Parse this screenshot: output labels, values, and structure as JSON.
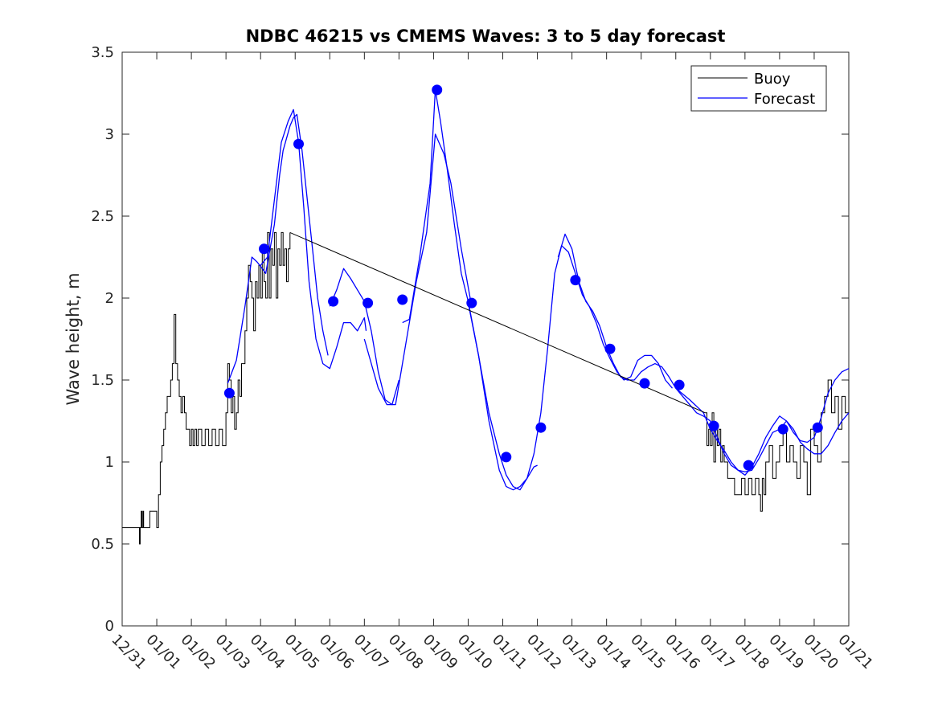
{
  "colors": {
    "buoy": "#000000",
    "forecast": "#0000ff",
    "marker": "#0000ff",
    "axis": "#262626"
  },
  "chart_data": {
    "type": "line",
    "title": "NDBC 46215 vs CMEMS Waves: 3 to 5 day forecast",
    "xlabel": "",
    "ylabel": "Wave height, m",
    "xlim": [
      0,
      21
    ],
    "ylim": [
      0,
      3.5
    ],
    "yticks": [
      0,
      0.5,
      1,
      1.5,
      2,
      2.5,
      3,
      3.5
    ],
    "ytick_labels": [
      "0",
      "0.5",
      "1",
      "1.5",
      "2",
      "2.5",
      "3",
      "3.5"
    ],
    "xticks": [
      0,
      1,
      2,
      3,
      4,
      5,
      6,
      7,
      8,
      9,
      10,
      11,
      12,
      13,
      14,
      15,
      16,
      17,
      18,
      19,
      20,
      21
    ],
    "xtick_labels": [
      "12/31",
      "01/01",
      "01/02",
      "01/03",
      "01/04",
      "01/05",
      "01/06",
      "01/07",
      "01/08",
      "01/09",
      "01/10",
      "01/11",
      "01/12",
      "01/13",
      "01/14",
      "01/15",
      "01/16",
      "01/17",
      "01/18",
      "01/19",
      "01/20",
      "01/21"
    ],
    "legend": {
      "position": "top-right",
      "entries": [
        {
          "label": "Buoy",
          "series": "buoy"
        },
        {
          "label": "Forecast",
          "series": "forecast"
        }
      ]
    },
    "series": [
      {
        "name": "Buoy",
        "role": "buoy",
        "x": [
          0,
          0.5,
          0.52,
          0.55,
          0.57,
          0.6,
          0.62,
          0.65,
          0.67,
          0.7,
          0.8,
          0.83,
          1.0,
          1.05,
          1.1,
          1.15,
          1.2,
          1.25,
          1.3,
          1.35,
          1.4,
          1.45,
          1.5,
          1.55,
          1.6,
          1.65,
          1.7,
          1.75,
          1.8,
          1.85,
          1.9,
          1.95,
          2.0,
          2.05,
          2.1,
          2.15,
          2.2,
          2.3,
          2.4,
          2.5,
          2.6,
          2.7,
          2.8,
          2.9,
          3.0,
          3.05,
          3.1,
          3.15,
          3.2,
          3.25,
          3.3,
          3.35,
          3.4,
          3.45,
          3.5,
          3.55,
          3.6,
          3.65,
          3.7,
          3.75,
          3.8,
          3.85,
          3.9,
          3.95,
          4.0,
          4.05,
          4.1,
          4.15,
          4.2,
          4.25,
          4.3,
          4.35,
          4.4,
          4.45,
          4.5,
          4.55,
          4.6,
          4.65,
          4.7,
          4.75,
          4.8,
          4.85,
          16.85,
          16.9,
          16.95,
          17.0,
          17.05,
          17.1,
          17.15,
          17.2,
          17.25,
          17.3,
          17.35,
          17.4,
          17.5,
          17.6,
          17.7,
          17.8,
          17.9,
          18.0,
          18.1,
          18.2,
          18.3,
          18.4,
          18.45,
          18.5,
          18.55,
          18.6,
          18.7,
          18.8,
          18.9,
          19.0,
          19.1,
          19.2,
          19.3,
          19.4,
          19.5,
          19.6,
          19.7,
          19.8,
          19.9,
          20.0,
          20.1,
          20.2,
          20.3,
          20.4,
          20.5,
          20.6,
          20.7,
          20.8,
          20.9,
          21.0
        ],
        "values": [
          0.6,
          0.5,
          0.6,
          0.7,
          0.6,
          0.7,
          0.6,
          0.6,
          0.6,
          0.6,
          0.7,
          0.7,
          0.6,
          0.8,
          1.0,
          1.1,
          1.2,
          1.3,
          1.4,
          1.4,
          1.5,
          1.6,
          1.9,
          1.6,
          1.5,
          1.4,
          1.3,
          1.4,
          1.3,
          1.2,
          1.2,
          1.1,
          1.2,
          1.1,
          1.2,
          1.1,
          1.2,
          1.1,
          1.2,
          1.1,
          1.2,
          1.1,
          1.2,
          1.1,
          1.3,
          1.6,
          1.5,
          1.3,
          1.4,
          1.2,
          1.3,
          1.5,
          1.4,
          1.6,
          1.6,
          1.8,
          2.0,
          2.2,
          2.1,
          2.0,
          1.8,
          2.1,
          2.0,
          2.2,
          2.0,
          2.3,
          2.1,
          2.0,
          2.4,
          2.0,
          2.3,
          2.2,
          2.4,
          2.0,
          2.3,
          2.2,
          2.4,
          2.2,
          2.3,
          2.1,
          2.3,
          2.4,
          1.3,
          1.1,
          1.2,
          1.1,
          1.3,
          1.0,
          1.2,
          1.1,
          1.2,
          1.0,
          1.1,
          1.0,
          0.9,
          0.9,
          0.8,
          0.8,
          0.9,
          0.8,
          0.9,
          0.8,
          0.9,
          0.8,
          0.7,
          0.9,
          0.8,
          1.0,
          1.1,
          0.9,
          1.0,
          1.1,
          1.2,
          1.0,
          1.1,
          1.0,
          0.9,
          1.1,
          1.0,
          0.8,
          1.2,
          1.1,
          1.0,
          1.3,
          1.4,
          1.5,
          1.3,
          1.4,
          1.2,
          1.4,
          1.3,
          1.5
        ]
      },
      {
        "name": "Forecast",
        "role": "forecast",
        "segments": [
          {
            "x": [
              3.05,
              3.3,
              3.55,
              3.75,
              3.9,
              4.05,
              4.15,
              4.4,
              4.55,
              4.65,
              4.85,
              4.95,
              5.05,
              5.2,
              5.35,
              5.5,
              5.65,
              5.8,
              5.95
            ],
            "values": [
              1.48,
              1.62,
              1.95,
              2.25,
              2.22,
              2.18,
              2.15,
              2.45,
              2.75,
              2.9,
              3.05,
              3.1,
              3.12,
              2.9,
              2.6,
              2.3,
              2.0,
              1.8,
              1.65
            ]
          },
          {
            "x": [
              4.0,
              4.2,
              4.4,
              4.6,
              4.8,
              4.95,
              5.1,
              5.25,
              5.4,
              5.6,
              5.8,
              6.0,
              6.2,
              6.4,
              6.6,
              6.8,
              7.0,
              7.05
            ],
            "values": [
              2.2,
              2.25,
              2.6,
              2.95,
              3.08,
              3.15,
              2.95,
              2.55,
              2.1,
              1.75,
              1.6,
              1.57,
              1.7,
              1.85,
              1.85,
              1.8,
              1.88,
              1.8
            ]
          },
          {
            "x": [
              6.0,
              6.2,
              6.4,
              6.6,
              6.8,
              7.0,
              7.2,
              7.4,
              7.6,
              7.8,
              8.0
            ],
            "values": [
              1.95,
              2.05,
              2.18,
              2.12,
              2.05,
              1.98,
              1.8,
              1.55,
              1.38,
              1.35,
              1.5
            ]
          },
          {
            "x": [
              7.0,
              7.4,
              7.65,
              7.9,
              8.1,
              8.3,
              8.5,
              8.8,
              9.05,
              9.3,
              9.5,
              9.8,
              10.1
            ],
            "values": [
              1.75,
              1.45,
              1.35,
              1.35,
              1.6,
              1.85,
              2.1,
              2.4,
              3.0,
              2.88,
              2.7,
              2.3,
              1.95
            ]
          },
          {
            "x": [
              8.1,
              8.3,
              8.6,
              8.9,
              9.05,
              9.2,
              9.4,
              9.6,
              9.8,
              10.0,
              10.3,
              10.6,
              10.9,
              11.1,
              11.3,
              11.5,
              11.7,
              11.9,
              12.0
            ],
            "values": [
              1.85,
              1.87,
              2.25,
              2.7,
              3.27,
              3.08,
              2.78,
              2.45,
              2.15,
              1.98,
              1.65,
              1.25,
              0.95,
              0.85,
              0.83,
              0.85,
              0.9,
              0.97,
              0.98
            ]
          },
          {
            "x": [
              10.0,
              10.3,
              10.6,
              10.9,
              11.1,
              11.3,
              11.5,
              11.7,
              11.9,
              12.1,
              12.3,
              12.5,
              12.7,
              12.9,
              13.1,
              13.3,
              13.5,
              13.7,
              13.9,
              14.1,
              14.3,
              14.5,
              14.7,
              14.9,
              15.1,
              15.3,
              15.5,
              15.7,
              15.9
            ],
            "values": [
              1.97,
              1.65,
              1.3,
              1.05,
              0.92,
              0.85,
              0.83,
              0.9,
              1.05,
              1.3,
              1.7,
              2.15,
              2.32,
              2.28,
              2.15,
              2.02,
              1.95,
              1.85,
              1.72,
              1.63,
              1.55,
              1.5,
              1.52,
              1.62,
              1.65,
              1.65,
              1.6,
              1.5,
              1.45
            ]
          },
          {
            "x": [
              12.6,
              12.8,
              13.0,
              13.2,
              13.4,
              13.6,
              13.8,
              14.0,
              14.2,
              14.4,
              14.6,
              14.8,
              15.0,
              15.2,
              15.4,
              15.6,
              15.8,
              16.0,
              16.2,
              16.4,
              16.6,
              16.8,
              17.0,
              17.2,
              17.4,
              17.6,
              17.8,
              18.0,
              18.2,
              18.4,
              18.6,
              18.8,
              19.0,
              19.2,
              19.4,
              19.6,
              19.8,
              20.0,
              20.2,
              20.4,
              20.6,
              20.8,
              21.0
            ],
            "values": [
              2.25,
              2.39,
              2.3,
              2.1,
              1.98,
              1.92,
              1.83,
              1.7,
              1.6,
              1.52,
              1.5,
              1.5,
              1.55,
              1.58,
              1.6,
              1.58,
              1.52,
              1.45,
              1.4,
              1.35,
              1.3,
              1.28,
              1.25,
              1.15,
              1.05,
              0.98,
              0.95,
              0.94,
              0.95,
              1.02,
              1.1,
              1.18,
              1.2,
              1.25,
              1.2,
              1.12,
              1.08,
              1.05,
              1.05,
              1.1,
              1.18,
              1.25,
              1.3
            ]
          },
          {
            "x": [
              16.0,
              16.4,
              16.8,
              17.0,
              17.2,
              17.4,
              17.6,
              17.8,
              18.0,
              18.2,
              18.4,
              18.6,
              18.8,
              19.0,
              19.2,
              19.4,
              19.6,
              19.8,
              20.0,
              20.2,
              20.4,
              20.6,
              20.8,
              21.0
            ],
            "values": [
              1.45,
              1.38,
              1.3,
              1.2,
              1.13,
              1.07,
              1.0,
              0.95,
              0.92,
              0.97,
              1.05,
              1.15,
              1.22,
              1.28,
              1.25,
              1.18,
              1.13,
              1.12,
              1.15,
              1.27,
              1.42,
              1.5,
              1.55,
              1.57
            ]
          }
        ]
      },
      {
        "name": "Forecast markers",
        "role": "markers",
        "x": [
          3.1,
          4.1,
          5.1,
          6.1,
          7.1,
          8.1,
          9.1,
          10.1,
          11.1,
          12.1,
          13.1,
          14.1,
          15.1,
          16.1,
          17.1,
          18.1,
          19.1,
          20.1
        ],
        "values": [
          1.42,
          2.3,
          2.94,
          1.98,
          1.97,
          1.99,
          3.27,
          1.97,
          1.03,
          1.21,
          2.11,
          1.69,
          1.48,
          1.47,
          1.22,
          0.98,
          1.2,
          1.21
        ]
      },
      {
        "name": "Buoy gap connector",
        "role": "connector",
        "x": [
          4.85,
          16.85
        ],
        "values": [
          2.4,
          1.3
        ]
      }
    ]
  }
}
